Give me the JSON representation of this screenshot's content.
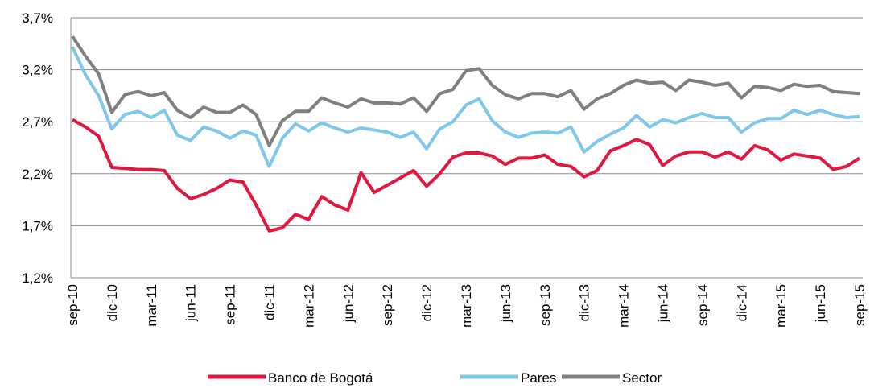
{
  "chart_data": {
    "type": "line",
    "categories": [
      "sep-10",
      null,
      null,
      "dic-10",
      null,
      null,
      "mar-11",
      null,
      null,
      "jun-11",
      null,
      null,
      "sep-11",
      null,
      null,
      "dic-11",
      null,
      null,
      "mar-12",
      null,
      null,
      "jun-12",
      null,
      null,
      "sep-12",
      null,
      null,
      "dic-12",
      null,
      null,
      "mar-13",
      null,
      null,
      "jun-13",
      null,
      null,
      "sep-13",
      null,
      null,
      "dic-13",
      null,
      null,
      "mar-14",
      null,
      null,
      "jun-14",
      null,
      null,
      "sep-14",
      null,
      null,
      "dic-14",
      null,
      null,
      "mar-15",
      null,
      null,
      "jun-15",
      null,
      null,
      "sep-15"
    ],
    "series": [
      {
        "name": "Banco de Bogotá",
        "color": "#e0173f",
        "values": [
          2.72,
          2.65,
          2.56,
          2.26,
          2.25,
          2.24,
          2.24,
          2.23,
          2.06,
          1.96,
          2.0,
          2.06,
          2.14,
          2.12,
          1.9,
          1.65,
          1.68,
          1.81,
          1.76,
          1.98,
          1.9,
          1.85,
          2.21,
          2.02,
          2.09,
          2.16,
          2.23,
          2.08,
          2.2,
          2.36,
          2.4,
          2.4,
          2.37,
          2.29,
          2.35,
          2.35,
          2.38,
          2.29,
          2.27,
          2.17,
          2.23,
          2.42,
          2.47,
          2.53,
          2.48,
          2.28,
          2.37,
          2.41,
          2.41,
          2.36,
          2.41,
          2.34,
          2.47,
          2.43,
          2.33,
          2.39,
          2.37,
          2.35,
          2.24,
          2.27,
          2.35
        ]
      },
      {
        "name": "Pares",
        "color": "#7fc8ea",
        "values": [
          3.42,
          3.15,
          2.95,
          2.63,
          2.77,
          2.8,
          2.74,
          2.81,
          2.57,
          2.52,
          2.65,
          2.61,
          2.54,
          2.61,
          2.57,
          2.27,
          2.54,
          2.68,
          2.61,
          2.69,
          2.64,
          2.6,
          2.64,
          2.62,
          2.6,
          2.55,
          2.6,
          2.44,
          2.63,
          2.7,
          2.86,
          2.92,
          2.71,
          2.6,
          2.55,
          2.59,
          2.6,
          2.59,
          2.65,
          2.41,
          2.51,
          2.58,
          2.64,
          2.76,
          2.65,
          2.72,
          2.69,
          2.74,
          2.78,
          2.74,
          2.74,
          2.6,
          2.69,
          2.73,
          2.73,
          2.81,
          2.77,
          2.81,
          2.77,
          2.74,
          2.75
        ]
      },
      {
        "name": "Sector",
        "color": "#7f7f7f",
        "values": [
          3.52,
          3.33,
          3.16,
          2.79,
          2.96,
          2.99,
          2.95,
          2.98,
          2.81,
          2.74,
          2.84,
          2.79,
          2.79,
          2.86,
          2.77,
          2.47,
          2.71,
          2.8,
          2.8,
          2.93,
          2.88,
          2.84,
          2.92,
          2.88,
          2.88,
          2.87,
          2.93,
          2.8,
          2.97,
          3.01,
          3.19,
          3.21,
          3.05,
          2.96,
          2.92,
          2.97,
          2.97,
          2.94,
          3.0,
          2.82,
          2.92,
          2.97,
          3.05,
          3.1,
          3.07,
          3.08,
          3.0,
          3.1,
          3.08,
          3.05,
          3.07,
          2.93,
          3.04,
          3.03,
          3.0,
          3.06,
          3.04,
          3.05,
          2.99,
          2.98,
          2.97
        ]
      }
    ],
    "ylim": [
      1.2,
      3.7
    ],
    "yticks": [
      {
        "value": 1.2,
        "label": "1,2%"
      },
      {
        "value": 1.7,
        "label": "1,7%"
      },
      {
        "value": 2.2,
        "label": "2,2%"
      },
      {
        "value": 2.7,
        "label": "2,7%"
      },
      {
        "value": 3.2,
        "label": "3,2%"
      },
      {
        "value": 3.7,
        "label": "3,7%"
      }
    ],
    "grid": true,
    "legend": "bottom"
  }
}
